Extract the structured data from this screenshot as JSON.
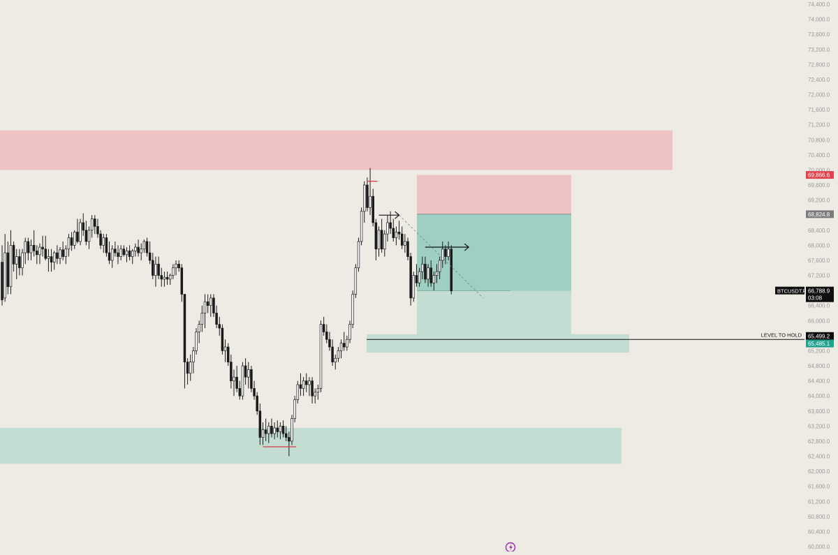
{
  "chart_data": {
    "type": "candlestick",
    "y_axis": {
      "min": 60000,
      "max": 74400,
      "step": 400,
      "tick_format": "comma_one_decimal",
      "position": "right"
    },
    "x_axis": {
      "visible": false
    },
    "grid": false,
    "symbol": "BTCUSDT.P",
    "last_price": 66788.9,
    "last_price_label": "66,788.9",
    "countdown": "03:08",
    "price_tags": [
      {
        "id": "stop",
        "value": 69866.6,
        "label": "69,866.6",
        "color": "#e0434b"
      },
      {
        "id": "entry",
        "value": 68824.8,
        "label": "68,824.8",
        "color": "#7c7c7c"
      },
      {
        "id": "level",
        "value": 65499.2,
        "label": "65,499.2",
        "color": "#0c0c0c"
      },
      {
        "id": "target",
        "value": 65485.1,
        "label": "65,485.1",
        "color": "#22a38f"
      }
    ],
    "level_line": {
      "value": 65499.2,
      "label": "LEVEL TO HOLD"
    },
    "zones": [
      {
        "name": "supply-zone",
        "y1": 70000,
        "y2": 71050,
        "color": "#efc3c3"
      },
      {
        "name": "demand-zone-low",
        "y1": 62200,
        "y2": 63150,
        "color": "#c4ddd3"
      },
      {
        "name": "demand-zone-mid",
        "y1": 65150,
        "y2": 65640,
        "color": "#c4ddd3"
      }
    ],
    "position_tool": {
      "type": "short",
      "entry": 68824.8,
      "stop": 69866.6,
      "target": 65485.1,
      "current": 66788.9,
      "colors": {
        "risk": "#efc3c3",
        "reward": "#c4ddd3",
        "realized": "#9fcfc2"
      }
    },
    "colors": {
      "up": "#ffffff",
      "down": "#1a1a1a",
      "wick": "#1a1a1a",
      "mark": "#d9393d",
      "background": "#eeebe4"
    },
    "candles": [
      [
        67550,
        68000,
        66400,
        66550
      ],
      [
        66600,
        68300,
        66500,
        67800
      ],
      [
        67800,
        68100,
        66700,
        66900
      ],
      [
        66900,
        68400,
        66700,
        68000
      ],
      [
        68000,
        68100,
        67300,
        67500
      ],
      [
        67500,
        67900,
        67100,
        67700
      ],
      [
        67700,
        67900,
        67200,
        67400
      ],
      [
        67400,
        67900,
        67200,
        67800
      ],
      [
        67800,
        68200,
        67500,
        68100
      ],
      [
        68100,
        68200,
        67600,
        67800
      ],
      [
        67800,
        68150,
        67600,
        68000
      ],
      [
        68000,
        68400,
        67700,
        67850
      ],
      [
        67850,
        68000,
        67500,
        67750
      ],
      [
        67750,
        68050,
        67500,
        67950
      ],
      [
        67950,
        68250,
        67700,
        67900
      ],
      [
        67900,
        68250,
        67600,
        67650
      ],
      [
        67650,
        67900,
        67300,
        67700
      ],
      [
        67700,
        67900,
        67300,
        67550
      ],
      [
        67550,
        67850,
        67350,
        67800
      ],
      [
        67800,
        68000,
        67500,
        67650
      ],
      [
        67650,
        67950,
        67500,
        67880
      ],
      [
        67880,
        68100,
        67600,
        67700
      ],
      [
        67700,
        68000,
        67500,
        67900
      ],
      [
        67900,
        68300,
        67700,
        68200
      ],
      [
        68200,
        68350,
        67850,
        68000
      ],
      [
        68000,
        68400,
        67900,
        68350
      ],
      [
        68350,
        68700,
        68050,
        68100
      ],
      [
        68100,
        68700,
        68000,
        68600
      ],
      [
        68600,
        68850,
        68250,
        68400
      ],
      [
        68400,
        68650,
        68000,
        68100
      ],
      [
        68100,
        68500,
        67900,
        68400
      ],
      [
        68400,
        68800,
        68200,
        68700
      ],
      [
        68700,
        68800,
        68300,
        68500
      ],
      [
        68500,
        68700,
        68200,
        68300
      ],
      [
        68300,
        68400,
        67900,
        68000
      ],
      [
        68000,
        68300,
        67800,
        68200
      ],
      [
        68200,
        68300,
        67700,
        67800
      ],
      [
        67800,
        68100,
        67500,
        67600
      ],
      [
        67600,
        68000,
        67400,
        67900
      ],
      [
        67900,
        68100,
        67700,
        67800
      ],
      [
        67800,
        68000,
        67500,
        67700
      ],
      [
        67700,
        68000,
        67600,
        67900
      ],
      [
        67900,
        68000,
        67700,
        67750
      ],
      [
        67750,
        67950,
        67550,
        67850
      ],
      [
        67850,
        68000,
        67600,
        67700
      ],
      [
        67700,
        67900,
        67500,
        67850
      ],
      [
        67850,
        68050,
        67700,
        67950
      ],
      [
        67950,
        68150,
        67700,
        67800
      ],
      [
        67800,
        68050,
        67600,
        67900
      ],
      [
        67900,
        68150,
        67800,
        68100
      ],
      [
        68100,
        68200,
        67700,
        67800
      ],
      [
        67800,
        68100,
        67500,
        67600
      ],
      [
        67600,
        67800,
        67100,
        67200
      ],
      [
        67200,
        67700,
        66900,
        67500
      ],
      [
        67500,
        67700,
        67100,
        67200
      ],
      [
        67200,
        67400,
        66900,
        67100
      ],
      [
        67100,
        67300,
        66900,
        67150
      ],
      [
        67150,
        67300,
        66950,
        67100
      ],
      [
        67100,
        67250,
        66950,
        67200
      ],
      [
        67200,
        67500,
        67100,
        67400
      ],
      [
        67400,
        67600,
        67200,
        67500
      ],
      [
        67500,
        67600,
        67300,
        67400
      ],
      [
        67400,
        67500,
        66500,
        66700
      ],
      [
        66700,
        66700,
        64200,
        64900
      ],
      [
        64900,
        65000,
        64300,
        64600
      ],
      [
        64600,
        65100,
        64400,
        64900
      ],
      [
        64900,
        65300,
        64600,
        65200
      ],
      [
        65200,
        65800,
        65100,
        65700
      ],
      [
        65700,
        66000,
        65400,
        65900
      ],
      [
        65900,
        66400,
        65700,
        66200
      ],
      [
        66200,
        66700,
        65800,
        66500
      ],
      [
        66500,
        66700,
        66200,
        66400
      ],
      [
        66400,
        66700,
        66100,
        66600
      ],
      [
        66600,
        66700,
        66100,
        66200
      ],
      [
        66200,
        66400,
        65800,
        65900
      ],
      [
        65900,
        66100,
        65600,
        65800
      ],
      [
        65800,
        65900,
        65100,
        65200
      ],
      [
        65200,
        65500,
        64900,
        65300
      ],
      [
        65300,
        65400,
        64800,
        64900
      ],
      [
        64900,
        65100,
        64200,
        64400
      ],
      [
        64400,
        64700,
        64000,
        64500
      ],
      [
        64500,
        64800,
        64100,
        64200
      ],
      [
        64200,
        64400,
        63900,
        64000
      ],
      [
        64000,
        64900,
        63900,
        64800
      ],
      [
        64800,
        65000,
        64300,
        64500
      ],
      [
        64500,
        64900,
        64200,
        64700
      ],
      [
        64700,
        64800,
        64100,
        64200
      ],
      [
        64200,
        64400,
        63900,
        64000
      ],
      [
        64000,
        64100,
        63500,
        63600
      ],
      [
        63600,
        63800,
        62700,
        62900
      ],
      [
        62900,
        63300,
        62700,
        63100
      ],
      [
        63100,
        63400,
        62800,
        63000
      ],
      [
        63000,
        63300,
        62750,
        63200
      ],
      [
        63200,
        63400,
        62900,
        63000
      ],
      [
        63000,
        63300,
        62850,
        63150
      ],
      [
        63150,
        63350,
        62900,
        63050
      ],
      [
        63050,
        63300,
        62850,
        63200
      ],
      [
        63200,
        63350,
        62900,
        63000
      ],
      [
        63000,
        63200,
        62800,
        62900
      ],
      [
        62900,
        63050,
        62400,
        62800
      ],
      [
        62800,
        63500,
        62700,
        63400
      ],
      [
        63400,
        64000,
        63300,
        63900
      ],
      [
        63900,
        64400,
        63800,
        64300
      ],
      [
        64300,
        64600,
        64000,
        64200
      ],
      [
        64200,
        64500,
        64000,
        64400
      ],
      [
        64400,
        64600,
        64100,
        64300
      ],
      [
        64300,
        64500,
        64000,
        64400
      ],
      [
        64400,
        64500,
        63800,
        64000
      ],
      [
        64000,
        64200,
        63800,
        64100
      ],
      [
        64100,
        64300,
        63900,
        64200
      ],
      [
        64200,
        66000,
        64100,
        65900
      ],
      [
        65900,
        66100,
        65600,
        65700
      ],
      [
        65700,
        65900,
        65400,
        65500
      ],
      [
        65500,
        65700,
        65200,
        65300
      ],
      [
        65300,
        65500,
        64800,
        64900
      ],
      [
        64900,
        65100,
        64700,
        65000
      ],
      [
        65000,
        65300,
        64900,
        65200
      ],
      [
        65200,
        65500,
        65000,
        65400
      ],
      [
        65400,
        65700,
        65200,
        65300
      ],
      [
        65300,
        65600,
        65200,
        65500
      ],
      [
        65500,
        66000,
        65400,
        65900
      ],
      [
        65900,
        66800,
        65800,
        66700
      ],
      [
        66700,
        67500,
        66600,
        67400
      ],
      [
        67400,
        68200,
        67300,
        68100
      ],
      [
        68100,
        69000,
        68000,
        68900
      ],
      [
        68900,
        69700,
        68600,
        69600
      ],
      [
        69600,
        69800,
        68900,
        69000
      ],
      [
        69000,
        70050,
        68800,
        69300
      ],
      [
        69300,
        69500,
        68500,
        68600
      ],
      [
        68600,
        68700,
        67600,
        67900
      ],
      [
        67900,
        68500,
        67700,
        68400
      ],
      [
        68400,
        68700,
        67800,
        67900
      ],
      [
        67900,
        68400,
        67700,
        68300
      ],
      [
        68300,
        68800,
        68100,
        68600
      ],
      [
        68600,
        68900,
        68300,
        68450
      ],
      [
        68450,
        68700,
        68100,
        68200
      ],
      [
        68200,
        68500,
        68000,
        68350
      ],
      [
        68350,
        68650,
        68150,
        68300
      ],
      [
        68300,
        68500,
        67900,
        68000
      ],
      [
        68000,
        68300,
        67800,
        68100
      ],
      [
        68100,
        68200,
        67600,
        67700
      ],
      [
        67700,
        67800,
        66400,
        66600
      ],
      [
        66600,
        67300,
        66500,
        67200
      ],
      [
        67200,
        67500,
        66900,
        67000
      ],
      [
        67000,
        67400,
        66900,
        67300
      ],
      [
        67300,
        67700,
        67100,
        67500
      ],
      [
        67500,
        67700,
        67000,
        67100
      ],
      [
        67100,
        67500,
        66900,
        67400
      ],
      [
        67400,
        67600,
        66900,
        67000
      ],
      [
        67000,
        67300,
        66800,
        67200
      ],
      [
        67200,
        67500,
        67000,
        67300
      ],
      [
        67300,
        67700,
        67100,
        67600
      ],
      [
        67600,
        68100,
        67400,
        67900
      ],
      [
        67900,
        68000,
        67500,
        67700
      ],
      [
        67700,
        68100,
        67600,
        67900
      ],
      [
        67900,
        68000,
        66700,
        66788.9
      ]
    ],
    "annotations": [
      {
        "name": "high-mark",
        "kind": "hline",
        "x1": 126,
        "x2": 129.5,
        "y": 69700,
        "color": "#d9393d"
      },
      {
        "name": "low-mark",
        "kind": "hline",
        "x1": 90,
        "x2": 101.5,
        "y": 62650,
        "color": "#d9393d"
      },
      {
        "name": "entry-arrow",
        "kind": "arrow",
        "x1": 130,
        "x2": 137,
        "y": 68800
      },
      {
        "name": "inner-arrow",
        "kind": "arrow",
        "x1": 146,
        "x2": 161,
        "y": 67950
      },
      {
        "name": "path-dashed",
        "kind": "dashed",
        "x1": 137,
        "y1": 68800,
        "x2": 166,
        "y2": 66600
      }
    ]
  }
}
